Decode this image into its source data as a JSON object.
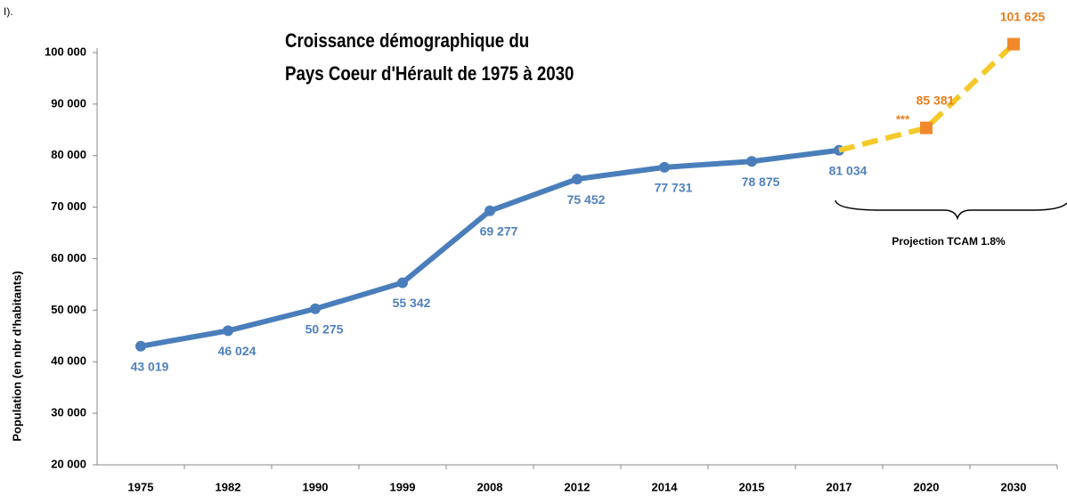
{
  "chart_data": {
    "type": "line",
    "title": [
      "Croissance démographique du",
      "Pays Coeur d'Hérault de 1975 à 2030"
    ],
    "corner_note": "I).",
    "y_label": "Population  (en nbr d'habitants)",
    "annotations": [
      "***",
      "Projection TCAM 1.8%"
    ],
    "categories": [
      "1975",
      "1982",
      "1990",
      "1999",
      "2008",
      "2012",
      "2014",
      "2015",
      "2017",
      "2020",
      "2030"
    ],
    "series": [
      {
        "color": "#4a7ebb",
        "label_color": "#4f81bd",
        "marker": "circle",
        "dash": false,
        "values": [
          43019,
          46024,
          50275,
          55342,
          69277,
          75452,
          77731,
          78875,
          81034,
          null,
          null
        ],
        "value_labels": [
          "43 019",
          "46 024",
          "50 275",
          "55 342",
          "69 277",
          "75 452",
          "77 731",
          "78 875",
          "81 034",
          null,
          null
        ]
      },
      {
        "color": "#f5c92a",
        "label_color": "#e87d1e",
        "marker": "square",
        "marker_color": "#f0892a",
        "dash": true,
        "values": [
          null,
          null,
          null,
          null,
          null,
          null,
          null,
          null,
          81034,
          85381,
          101625
        ],
        "value_labels": [
          null,
          null,
          null,
          null,
          null,
          null,
          null,
          null,
          null,
          "85 381",
          "101 625"
        ]
      }
    ],
    "ylim": [
      20000,
      100000
    ],
    "yticks": [
      {
        "value": 20000,
        "label": "20 000"
      },
      {
        "value": 30000,
        "label": "30 000"
      },
      {
        "value": 40000,
        "label": "40 000"
      },
      {
        "value": 50000,
        "label": "50 000"
      },
      {
        "value": 60000,
        "label": "60 000"
      },
      {
        "value": 70000,
        "label": "70 000"
      },
      {
        "value": 80000,
        "label": "80 000"
      },
      {
        "value": 90000,
        "label": "90 000"
      },
      {
        "value": 100000,
        "label": "100 000"
      }
    ]
  }
}
